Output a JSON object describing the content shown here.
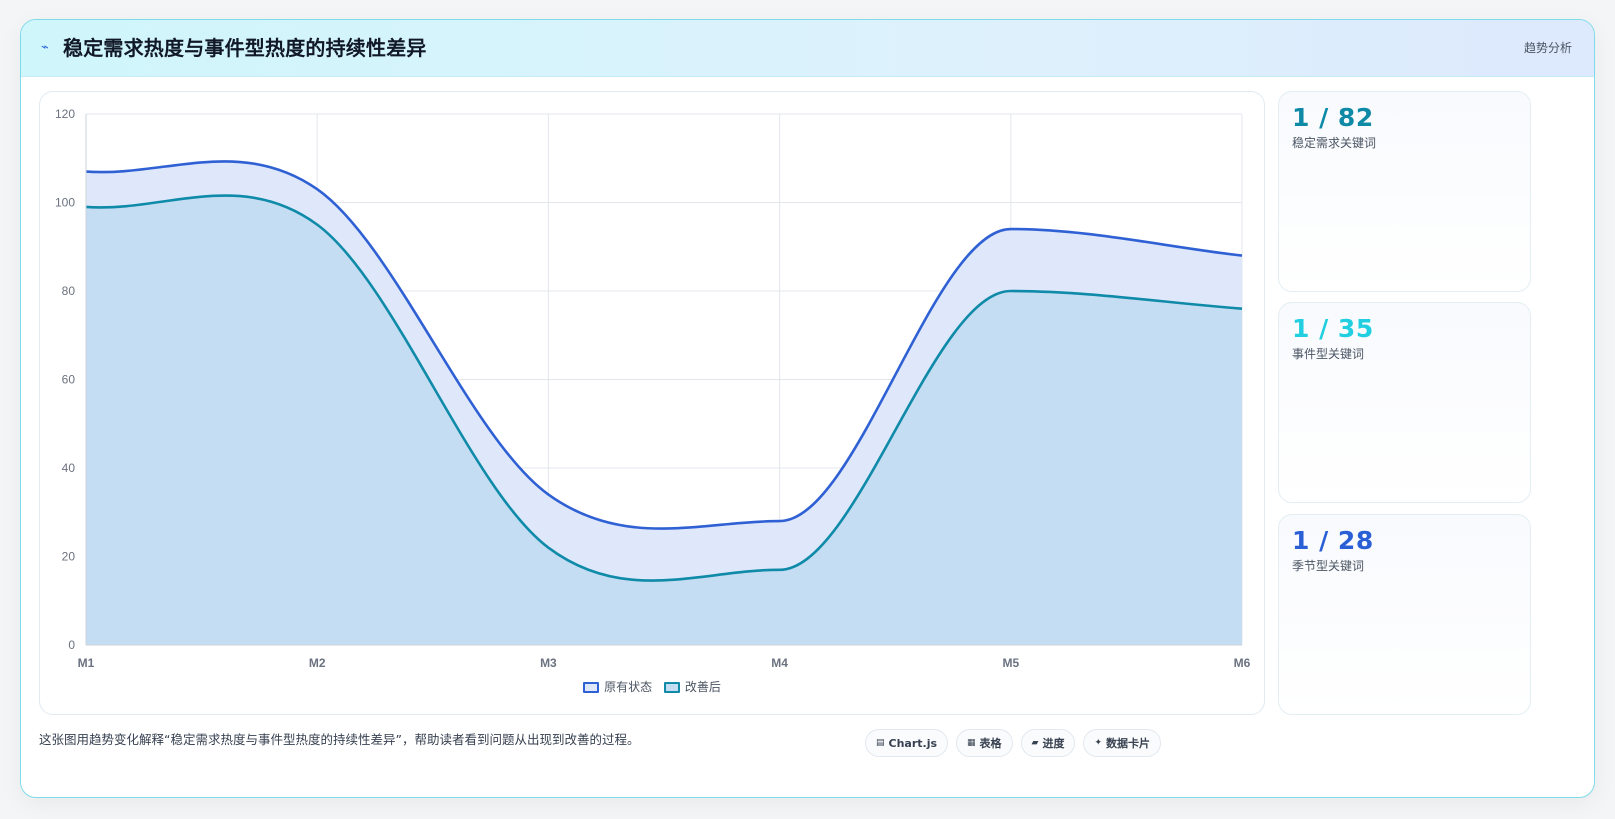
{
  "header": {
    "icon": "sparkle-icon",
    "title": "稳定需求热度与事件型热度的持续性差异",
    "tag": "趋势分析"
  },
  "chart_data": {
    "type": "area",
    "categories": [
      "M1",
      "M2",
      "M3",
      "M4",
      "M5",
      "M6"
    ],
    "ylim": [
      0,
      120
    ],
    "yticks": [
      0,
      20,
      40,
      60,
      80,
      100,
      120
    ],
    "grid": true,
    "legend_position": "bottom",
    "title": "",
    "xlabel": "",
    "ylabel": "",
    "series": [
      {
        "name": "原有状态",
        "values": [
          107,
          103,
          34,
          28,
          94,
          88
        ],
        "color": "#2f61d4",
        "fill": "#dfe8fb"
      },
      {
        "name": "改善后",
        "values": [
          99,
          95,
          22,
          17,
          80,
          76
        ],
        "color": "#0f8aa8",
        "fill": "#c4ddf2"
      }
    ]
  },
  "stats": [
    {
      "value": "1 / 82",
      "label": "稳定需求关键词",
      "color": "#0e8aa6"
    },
    {
      "value": "1 / 35",
      "label": "事件型关键词",
      "color": "#22cfe0"
    },
    {
      "value": "1 / 28",
      "label": "季节型关键词",
      "color": "#2b5fd6"
    }
  ],
  "caption": "这张图用趋势变化解释“稳定需求热度与事件型热度的持续性差异”，帮助读者看到问题从出现到改善的过程。",
  "chips": [
    {
      "icon": "chart-icon",
      "glyph": "▤",
      "label": "Chart.js"
    },
    {
      "icon": "table-icon",
      "glyph": "▦",
      "label": "表格"
    },
    {
      "icon": "progress-icon",
      "glyph": "▰",
      "label": "进度"
    },
    {
      "icon": "data-card-icon",
      "glyph": "✦",
      "label": "数据卡片"
    }
  ]
}
